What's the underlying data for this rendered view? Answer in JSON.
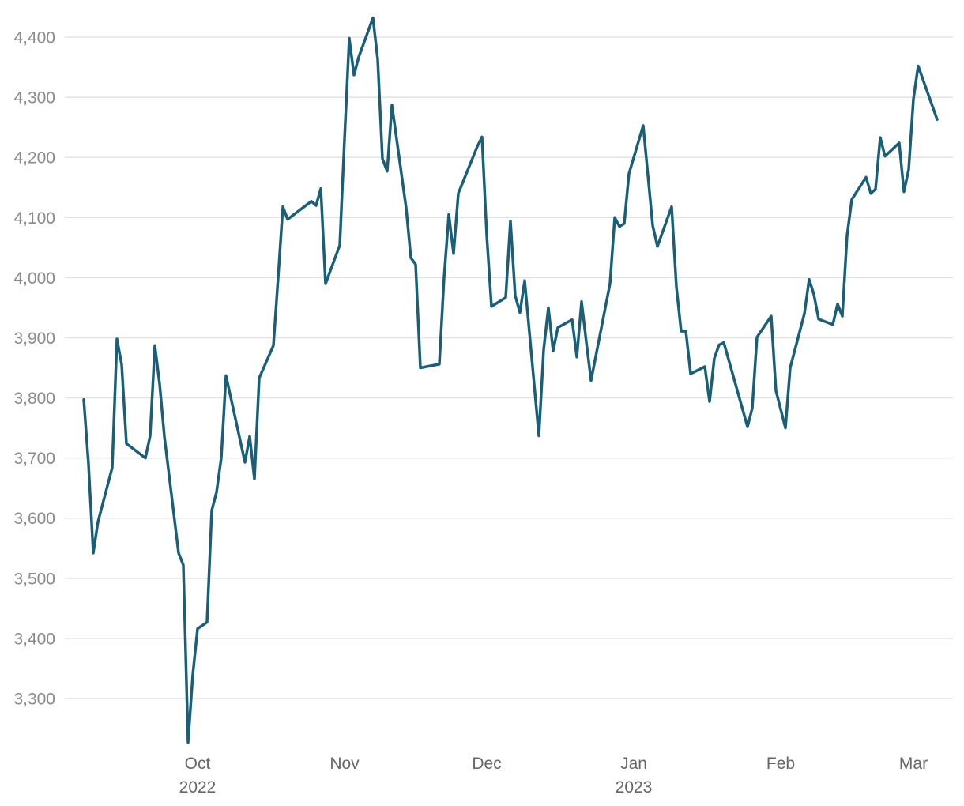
{
  "chart_data": {
    "type": "line",
    "title": "",
    "xlabel": "",
    "ylabel": "",
    "ylim": [
      3220,
      4440
    ],
    "xlim": [
      "2022-09-06",
      "2023-03-12"
    ],
    "grid": true,
    "legend": "none",
    "colors": {
      "line": "#1a5f78",
      "grid": "#e2e2e2",
      "tick_text": "#8a8a8a"
    },
    "y_ticks": [
      {
        "value": 3300,
        "label": "3,300"
      },
      {
        "value": 3400,
        "label": "3,400"
      },
      {
        "value": 3500,
        "label": "3,500"
      },
      {
        "value": 3600,
        "label": "3,600"
      },
      {
        "value": 3700,
        "label": "3,700"
      },
      {
        "value": 3800,
        "label": "3,800"
      },
      {
        "value": 3900,
        "label": "3,900"
      },
      {
        "value": 4000,
        "label": "4,000"
      },
      {
        "value": 4100,
        "label": "4,100"
      },
      {
        "value": 4200,
        "label": "4,200"
      },
      {
        "value": 4300,
        "label": "4,300"
      },
      {
        "value": 4400,
        "label": "4,400"
      }
    ],
    "x_ticks": [
      {
        "date": "2022-10-01",
        "label": "Oct",
        "sublabel": "2022"
      },
      {
        "date": "2022-11-01",
        "label": "Nov",
        "sublabel": ""
      },
      {
        "date": "2022-12-01",
        "label": "Dec",
        "sublabel": ""
      },
      {
        "date": "2023-01-01",
        "label": "Jan",
        "sublabel": "2023"
      },
      {
        "date": "2023-02-01",
        "label": "Feb",
        "sublabel": ""
      },
      {
        "date": "2023-03-01",
        "label": "Mar",
        "sublabel": ""
      }
    ],
    "series": [
      {
        "points": [
          [
            "2022-09-07",
            3797
          ],
          [
            "2022-09-08",
            3690
          ],
          [
            "2022-09-09",
            3542
          ],
          [
            "2022-09-10",
            3594
          ],
          [
            "2022-09-13",
            3684
          ],
          [
            "2022-09-14",
            3898
          ],
          [
            "2022-09-15",
            3855
          ],
          [
            "2022-09-16",
            3724
          ],
          [
            "2022-09-20",
            3700
          ],
          [
            "2022-09-21",
            3737
          ],
          [
            "2022-09-22",
            3887
          ],
          [
            "2022-09-23",
            3823
          ],
          [
            "2022-09-24",
            3736
          ],
          [
            "2022-09-27",
            3542
          ],
          [
            "2022-09-28",
            3522
          ],
          [
            "2022-09-29",
            3227
          ],
          [
            "2022-09-30",
            3340
          ],
          [
            "2022-10-01",
            3416
          ],
          [
            "2022-10-03",
            3427
          ],
          [
            "2022-10-04",
            3613
          ],
          [
            "2022-10-05",
            3643
          ],
          [
            "2022-10-06",
            3700
          ],
          [
            "2022-10-07",
            3837
          ],
          [
            "2022-10-11",
            3693
          ],
          [
            "2022-10-12",
            3736
          ],
          [
            "2022-10-13",
            3665
          ],
          [
            "2022-10-14",
            3833
          ],
          [
            "2022-10-17",
            3887
          ],
          [
            "2022-10-18",
            4000
          ],
          [
            "2022-10-19",
            4118
          ],
          [
            "2022-10-20",
            4097
          ],
          [
            "2022-10-25",
            4127
          ],
          [
            "2022-10-26",
            4120
          ],
          [
            "2022-10-27",
            4148
          ],
          [
            "2022-10-28",
            3990
          ],
          [
            "2022-10-31",
            4054
          ],
          [
            "2022-11-01",
            4230
          ],
          [
            "2022-11-02",
            4398
          ],
          [
            "2022-11-03",
            4337
          ],
          [
            "2022-11-04",
            4367
          ],
          [
            "2022-11-07",
            4432
          ],
          [
            "2022-11-08",
            4363
          ],
          [
            "2022-11-09",
            4198
          ],
          [
            "2022-11-10",
            4177
          ],
          [
            "2022-11-11",
            4287
          ],
          [
            "2022-11-14",
            4116
          ],
          [
            "2022-11-15",
            4033
          ],
          [
            "2022-11-16",
            4022
          ],
          [
            "2022-11-17",
            3850
          ],
          [
            "2022-11-21",
            3856
          ],
          [
            "2022-11-22",
            4000
          ],
          [
            "2022-11-23",
            4105
          ],
          [
            "2022-11-24",
            4040
          ],
          [
            "2022-11-25",
            4140
          ],
          [
            "2022-11-29",
            4218
          ],
          [
            "2022-11-30",
            4234
          ],
          [
            "2022-12-01",
            4070
          ],
          [
            "2022-12-02",
            3952
          ],
          [
            "2022-12-05",
            3967
          ],
          [
            "2022-12-06",
            4094
          ],
          [
            "2022-12-07",
            3970
          ],
          [
            "2022-12-08",
            3942
          ],
          [
            "2022-12-09",
            3995
          ],
          [
            "2022-12-12",
            3737
          ],
          [
            "2022-12-13",
            3880
          ],
          [
            "2022-12-14",
            3950
          ],
          [
            "2022-12-15",
            3878
          ],
          [
            "2022-12-16",
            3917
          ],
          [
            "2022-12-19",
            3930
          ],
          [
            "2022-12-20",
            3868
          ],
          [
            "2022-12-21",
            3960
          ],
          [
            "2022-12-22",
            3893
          ],
          [
            "2022-12-23",
            3829
          ],
          [
            "2022-12-27",
            3990
          ],
          [
            "2022-12-28",
            4100
          ],
          [
            "2022-12-29",
            4085
          ],
          [
            "2022-12-30",
            4090
          ],
          [
            "2022-12-31",
            4173
          ],
          [
            "2023-01-03",
            4253
          ],
          [
            "2023-01-05",
            4087
          ],
          [
            "2023-01-06",
            4052
          ],
          [
            "2023-01-09",
            4118
          ],
          [
            "2023-01-10",
            3985
          ],
          [
            "2023-01-11",
            3911
          ],
          [
            "2023-01-12",
            3911
          ],
          [
            "2023-01-13",
            3840
          ],
          [
            "2023-01-16",
            3852
          ],
          [
            "2023-01-17",
            3794
          ],
          [
            "2023-01-18",
            3866
          ],
          [
            "2023-01-19",
            3888
          ],
          [
            "2023-01-20",
            3892
          ],
          [
            "2023-01-25",
            3752
          ],
          [
            "2023-01-26",
            3783
          ],
          [
            "2023-01-27",
            3901
          ],
          [
            "2023-01-30",
            3936
          ],
          [
            "2023-01-31",
            3812
          ],
          [
            "2023-02-02",
            3750
          ],
          [
            "2023-02-03",
            3850
          ],
          [
            "2023-02-06",
            3940
          ],
          [
            "2023-02-07",
            3997
          ],
          [
            "2023-02-08",
            3972
          ],
          [
            "2023-02-09",
            3931
          ],
          [
            "2023-02-12",
            3922
          ],
          [
            "2023-02-13",
            3956
          ],
          [
            "2023-02-14",
            3936
          ],
          [
            "2023-02-15",
            4070
          ],
          [
            "2023-02-16",
            4130
          ],
          [
            "2023-02-19",
            4167
          ],
          [
            "2023-02-20",
            4140
          ],
          [
            "2023-02-21",
            4147
          ],
          [
            "2023-02-22",
            4233
          ],
          [
            "2023-02-23",
            4202
          ],
          [
            "2023-02-26",
            4224
          ],
          [
            "2023-02-27",
            4143
          ],
          [
            "2023-02-28",
            4180
          ],
          [
            "2023-03-01",
            4297
          ],
          [
            "2023-03-02",
            4352
          ],
          [
            "2023-03-06",
            4263
          ]
        ]
      }
    ]
  }
}
